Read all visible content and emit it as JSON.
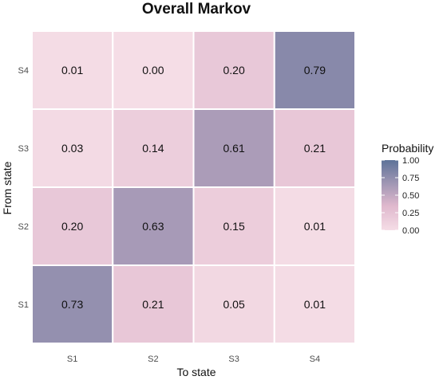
{
  "chart_data": {
    "type": "heatmap",
    "title": "Overall Markov",
    "xlabel": "To state",
    "ylabel": "From state",
    "x_categories": [
      "S1",
      "S2",
      "S3",
      "S4"
    ],
    "y_categories": [
      "S1",
      "S2",
      "S3",
      "S4"
    ],
    "rows": [
      {
        "from": "S4",
        "values": [
          0.01,
          0.0,
          0.2,
          0.79
        ]
      },
      {
        "from": "S3",
        "values": [
          0.03,
          0.14,
          0.61,
          0.21
        ]
      },
      {
        "from": "S2",
        "values": [
          0.2,
          0.63,
          0.15,
          0.01
        ]
      },
      {
        "from": "S1",
        "values": [
          0.73,
          0.21,
          0.05,
          0.01
        ]
      }
    ],
    "value_labels": [
      [
        "0.01",
        "0.00",
        "0.20",
        "0.79"
      ],
      [
        "0.03",
        "0.14",
        "0.61",
        "0.21"
      ],
      [
        "0.20",
        "0.63",
        "0.15",
        "0.01"
      ],
      [
        "0.73",
        "0.21",
        "0.05",
        "0.01"
      ]
    ],
    "legend": {
      "title": "Probability",
      "ticks": [
        0.0,
        0.25,
        0.5,
        0.75,
        1.0
      ],
      "tick_labels": [
        "0.00",
        "0.25",
        "0.50",
        "0.75",
        "1.00"
      ],
      "placement": "right"
    },
    "color_scale": {
      "low": "#f5dde6",
      "mid": "#dfb8cd",
      "high": "#5e7399",
      "range": [
        0,
        1
      ]
    },
    "background": "#ebebeb",
    "grid": false
  }
}
